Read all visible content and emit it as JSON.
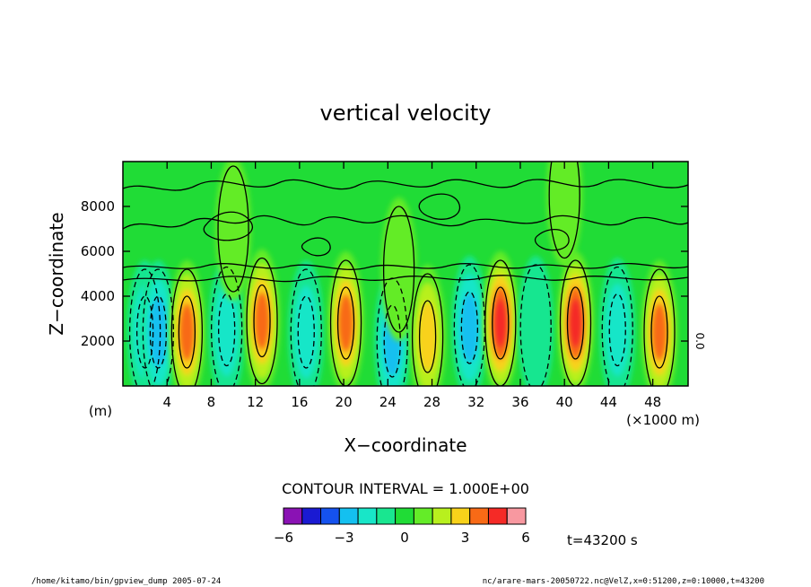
{
  "chart_data": {
    "type": "heatmap",
    "title": "vertical velocity",
    "xlabel": "X−coordinate",
    "ylabel": "Z−coordinate",
    "x_unit_label": "(×1000 m)",
    "y_unit_label": "(m)",
    "xlim": [
      0,
      51.2
    ],
    "ylim": [
      0,
      10000
    ],
    "x_ticks": [
      4,
      8,
      12,
      16,
      20,
      24,
      28,
      32,
      36,
      40,
      44,
      48
    ],
    "x_tick_labels": [
      "4",
      "8",
      "12",
      "16",
      "20",
      "24",
      "28",
      "32",
      "36",
      "40",
      "44",
      "48"
    ],
    "y_ticks": [
      2000,
      4000,
      6000,
      8000
    ],
    "y_tick_labels": [
      "2000",
      "4000",
      "6000",
      "8000"
    ],
    "contour_interval_label": "CONTOUR INTERVAL = 1.000E+00",
    "colorbar": {
      "levels": [
        -6,
        -5,
        -4,
        -3,
        -2,
        -1,
        0,
        1,
        2,
        3,
        4,
        5,
        6
      ],
      "tick_values": [
        -6,
        -3,
        0,
        3,
        6
      ],
      "tick_labels": [
        "−6",
        "−3",
        "0",
        "3",
        "6"
      ],
      "colors": [
        "#8a12b4",
        "#1a1ad2",
        "#1552ee",
        "#14c0f0",
        "#18e6c8",
        "#19e690",
        "#20dc36",
        "#64ec28",
        "#b8f01e",
        "#f8d21a",
        "#f86a16",
        "#f52a26",
        "#f898a0"
      ]
    },
    "cells": [
      {
        "x": 2.0,
        "z": 2400,
        "w": -2
      },
      {
        "x": 3.2,
        "z": 2400,
        "w": -3
      },
      {
        "x": 5.8,
        "z": 2400,
        "w": 4
      },
      {
        "x": 9.4,
        "z": 2500,
        "w": -2
      },
      {
        "x": 12.6,
        "z": 2900,
        "w": 4
      },
      {
        "x": 16.6,
        "z": 2400,
        "w": -2
      },
      {
        "x": 20.2,
        "z": 2800,
        "w": 4
      },
      {
        "x": 24.4,
        "z": 2000,
        "w": -3
      },
      {
        "x": 27.6,
        "z": 2200,
        "w": 3
      },
      {
        "x": 31.4,
        "z": 2600,
        "w": -3
      },
      {
        "x": 34.2,
        "z": 2800,
        "w": 5
      },
      {
        "x": 37.4,
        "z": 2600,
        "w": -1
      },
      {
        "x": 41.0,
        "z": 2800,
        "w": 5
      },
      {
        "x": 44.8,
        "z": 2500,
        "w": -2
      },
      {
        "x": 48.6,
        "z": 2400,
        "w": 4
      },
      {
        "x": 25.0,
        "z": 5200,
        "w": 1
      },
      {
        "x": 10.0,
        "z": 7000,
        "w": 0
      },
      {
        "x": 40.0,
        "z": 8500,
        "w": 0
      }
    ]
  },
  "footer": {
    "time_label": "t=43200 s",
    "left_path": "/home/kitamo/bin/gpview_dump  2005-07-24",
    "right_path": "nc/arare-mars-20050722.nc@VelZ,x=0:51200,z=0:10000,t=43200"
  },
  "side_label": "0.0"
}
